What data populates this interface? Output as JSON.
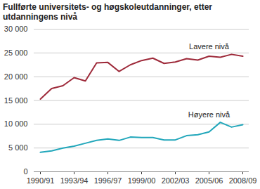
{
  "chart_data": {
    "type": "line",
    "title": "Fullførte universitets- og høgskoleutdanninger, etter utdanningens nivå",
    "categories": [
      "1990/91",
      null,
      null,
      "1993/94",
      null,
      null,
      "1996/97",
      null,
      null,
      "1999/00",
      null,
      null,
      "2002/03",
      null,
      null,
      "2005/06",
      null,
      null,
      "2008/09"
    ],
    "series": [
      {
        "name": "Lavere nivå",
        "color": "#9e2a3a",
        "values": [
          15300,
          17500,
          18100,
          19800,
          19100,
          22900,
          23000,
          21100,
          22500,
          23400,
          23900,
          22800,
          23100,
          23800,
          23500,
          24300,
          24100,
          24700,
          24300
        ]
      },
      {
        "name": "Høyere nivå",
        "color": "#22a7bb",
        "values": [
          4100,
          4400,
          5000,
          5400,
          6000,
          6600,
          6900,
          6600,
          7300,
          7200,
          7200,
          6700,
          6700,
          7600,
          7800,
          8400,
          10400,
          9400,
          9900
        ]
      }
    ],
    "ylim": [
      0,
      30000
    ],
    "yticks": [
      0,
      {
        "value": 5000,
        "label": "5 000"
      },
      {
        "value": 10000,
        "label": "10 000"
      },
      {
        "value": 15000,
        "label": "15 000"
      },
      {
        "value": 20000,
        "label": "20 000"
      },
      {
        "value": 25000,
        "label": "25 000"
      },
      {
        "value": 30000,
        "label": "30 000"
      }
    ],
    "grid": true
  }
}
